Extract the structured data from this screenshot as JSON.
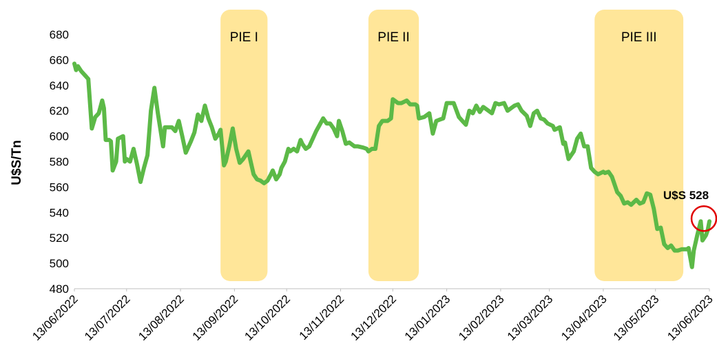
{
  "chart_data": {
    "type": "line",
    "y_label": "U$S/Tn",
    "color": "#5cb947",
    "band_color": "#ffe699",
    "bands": [
      {
        "label": "PIE I",
        "start": "05/09/2022",
        "end": "02/10/2022"
      },
      {
        "label": "PIE II",
        "start": "29/11/2022",
        "end": "28/12/2022"
      },
      {
        "label": "PIE III",
        "start": "08/04/2023",
        "end": "29/05/2023"
      }
    ],
    "annotation": "U$S 528",
    "ylim": [
      480,
      680
    ],
    "yticks": [
      480,
      500,
      520,
      540,
      560,
      580,
      600,
      620,
      640,
      660,
      680
    ],
    "xlim": [
      "13/06/2022",
      "13/06/2023"
    ],
    "xticks": [
      "13/06/2022",
      "13/07/2022",
      "13/08/2022",
      "13/09/2022",
      "13/10/2022",
      "13/11/2022",
      "13/12/2022",
      "13/01/2023",
      "13/02/2023",
      "13/03/2023",
      "13/04/2023",
      "13/05/2023",
      "13/06/2023"
    ],
    "x": [
      "13/06/2022",
      "14/06/2022",
      "15/06/2022",
      "17/06/2022",
      "21/06/2022",
      "23/06/2022",
      "25/06/2022",
      "27/06/2022",
      "29/06/2022",
      "30/06/2022",
      "01/07/2022",
      "03/07/2022",
      "04/07/2022",
      "05/07/2022",
      "07/07/2022",
      "08/07/2022",
      "11/07/2022",
      "12/07/2022",
      "13/07/2022",
      "15/07/2022",
      "17/07/2022",
      "19/07/2022",
      "21/07/2022",
      "23/07/2022",
      "25/07/2022",
      "27/07/2022",
      "29/07/2022",
      "31/07/2022",
      "03/08/2022",
      "04/08/2022",
      "08/08/2022",
      "10/08/2022",
      "12/08/2022",
      "14/08/2022",
      "16/08/2022",
      "19/08/2022",
      "21/08/2022",
      "23/08/2022",
      "25/08/2022",
      "27/08/2022",
      "29/08/2022",
      "31/08/2022",
      "02/09/2022",
      "04/09/2022",
      "05/09/2022",
      "07/09/2022",
      "08/09/2022",
      "10/09/2022",
      "12/09/2022",
      "14/09/2022",
      "16/09/2022",
      "18/09/2022",
      "21/09/2022",
      "22/09/2022",
      "24/09/2022",
      "26/09/2022",
      "28/09/2022",
      "30/09/2022",
      "02/10/2022",
      "04/10/2022",
      "05/10/2022",
      "07/10/2022",
      "09/10/2022",
      "10/10/2022",
      "12/10/2022",
      "14/10/2022",
      "15/10/2022",
      "17/10/2022",
      "19/10/2022",
      "21/10/2022",
      "22/10/2022",
      "24/10/2022",
      "26/10/2022",
      "28/10/2022",
      "30/10/2022",
      "01/11/2022",
      "03/11/2022",
      "05/11/2022",
      "07/11/2022",
      "09/11/2022",
      "11/11/2022",
      "12/11/2022",
      "14/11/2022",
      "16/11/2022",
      "18/11/2022",
      "21/11/2022",
      "23/11/2022",
      "26/11/2022",
      "28/11/2022",
      "29/11/2022",
      "01/12/2022",
      "03/12/2022",
      "05/12/2022",
      "07/12/2022",
      "10/12/2022",
      "12/12/2022",
      "13/12/2022",
      "16/12/2022",
      "18/12/2022",
      "21/12/2022",
      "23/12/2022",
      "26/12/2022",
      "27/12/2022",
      "28/12/2022",
      "31/12/2022",
      "03/01/2023",
      "05/01/2023",
      "07/01/2023",
      "09/01/2023",
      "11/01/2023",
      "13/01/2023",
      "15/01/2023",
      "17/01/2023",
      "20/01/2023",
      "22/01/2023",
      "24/01/2023",
      "26/01/2023",
      "28/01/2023",
      "30/01/2023",
      "01/02/2023",
      "03/02/2023",
      "06/02/2023",
      "08/02/2023",
      "10/02/2023",
      "12/02/2023",
      "15/02/2023",
      "17/02/2023",
      "19/02/2023",
      "21/02/2023",
      "23/02/2023",
      "25/02/2023",
      "28/02/2023",
      "02/03/2023",
      "04/03/2023",
      "06/03/2023",
      "08/03/2023",
      "10/03/2023",
      "12/03/2023",
      "15/03/2023",
      "16/03/2023",
      "19/03/2023",
      "21/03/2023",
      "22/03/2023",
      "24/03/2023",
      "27/03/2023",
      "29/03/2023",
      "31/03/2023",
      "02/04/2023",
      "04/04/2023",
      "06/04/2023",
      "08/04/2023",
      "10/04/2023",
      "13/04/2023",
      "14/04/2023",
      "16/04/2023",
      "18/04/2023",
      "21/04/2023",
      "23/04/2023",
      "25/04/2023",
      "27/04/2023",
      "29/04/2023",
      "02/05/2023",
      "04/05/2023",
      "06/05/2023",
      "08/05/2023",
      "10/05/2023",
      "12/05/2023",
      "14/05/2023",
      "16/05/2023",
      "18/05/2023",
      "20/05/2023",
      "22/05/2023",
      "24/05/2023",
      "26/05/2023",
      "28/05/2023",
      "31/05/2023",
      "01/06/2023",
      "03/06/2023",
      "04/06/2023",
      "06/06/2023",
      "08/06/2023",
      "09/06/2023",
      "11/06/2023",
      "12/06/2023",
      "13/06/2023"
    ],
    "values": [
      657,
      652,
      655,
      651,
      645,
      606,
      615,
      618,
      628,
      622,
      597,
      597,
      596,
      573,
      580,
      598,
      600,
      580,
      582,
      580,
      590,
      578,
      564,
      575,
      585,
      620,
      638,
      618,
      592,
      607,
      607,
      604,
      612,
      600,
      587,
      596,
      603,
      617,
      612,
      624,
      614,
      607,
      598,
      602,
      605,
      577,
      580,
      592,
      606,
      590,
      579,
      582,
      588,
      582,
      570,
      566,
      565,
      563,
      565,
      570,
      573,
      566,
      570,
      575,
      580,
      590,
      588,
      590,
      588,
      597,
      594,
      590,
      592,
      598,
      604,
      609,
      614,
      610,
      610,
      606,
      600,
      612,
      604,
      594,
      595,
      592,
      592,
      591,
      590,
      588,
      590,
      590,
      608,
      612,
      612,
      614,
      629,
      626,
      626,
      628,
      625,
      625,
      624,
      614,
      615,
      618,
      602,
      612,
      613,
      614,
      626,
      626,
      626,
      615,
      612,
      609,
      620,
      618,
      624,
      619,
      623,
      620,
      618,
      626,
      625,
      626,
      620,
      622,
      624,
      625,
      620,
      616,
      608,
      618,
      620,
      614,
      613,
      610,
      608,
      605,
      607,
      594,
      595,
      582,
      588,
      598,
      602,
      592,
      592,
      575,
      572,
      570,
      572,
      571,
      572,
      568,
      556,
      553,
      547,
      548,
      546,
      550,
      547,
      548,
      555,
      554,
      543,
      527,
      528,
      515,
      512,
      514,
      510,
      510,
      511,
      511,
      512,
      497,
      510,
      522,
      533,
      518,
      522,
      526,
      533
    ]
  }
}
